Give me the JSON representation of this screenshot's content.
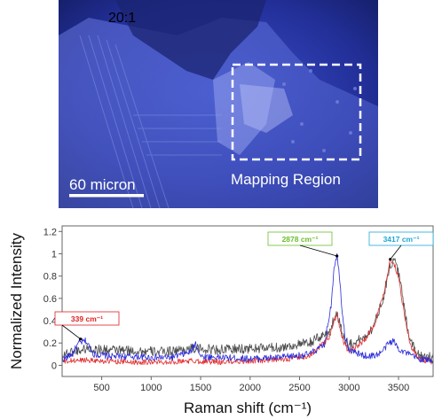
{
  "micrograph": {
    "magnification_label": "20:1",
    "scale_bar_label": "60 micron",
    "region_label": "Mapping Region"
  },
  "chart_data": {
    "type": "line",
    "xlabel": "Raman shift (cm⁻¹)",
    "ylabel": "Normalized Intensity",
    "xlim": [
      100,
      3850
    ],
    "ylim": [
      -0.1,
      1.25
    ],
    "xticks": [
      500,
      1000,
      1500,
      2000,
      2500,
      3000,
      3500
    ],
    "yticks": [
      0,
      0.2,
      0.4,
      0.6,
      0.8,
      1.0,
      1.2
    ],
    "ytick_labels": [
      "0",
      "0.2",
      "0.4",
      "0.6",
      "0.8",
      "1",
      "1.2"
    ],
    "grid": false,
    "series": [
      {
        "color": "#2a2ad8",
        "x": [
          100,
          200,
          270,
          339,
          420,
          600,
          800,
          1000,
          1200,
          1400,
          1450,
          1500,
          1700,
          2000,
          2300,
          2600,
          2750,
          2820,
          2850,
          2878,
          2900,
          2930,
          2960,
          3000,
          3100,
          3200,
          3300,
          3350,
          3400,
          3450,
          3500,
          3600,
          3700,
          3850
        ],
        "y": [
          0.05,
          0.1,
          0.2,
          0.22,
          0.1,
          0.08,
          0.08,
          0.07,
          0.07,
          0.12,
          0.2,
          0.08,
          0.07,
          0.06,
          0.07,
          0.1,
          0.18,
          0.55,
          0.9,
          0.98,
          0.85,
          0.5,
          0.25,
          0.14,
          0.1,
          0.08,
          0.1,
          0.14,
          0.2,
          0.22,
          0.15,
          0.1,
          0.06,
          0.04
        ]
      },
      {
        "color": "#4a4a4a",
        "x": [
          100,
          200,
          339,
          500,
          800,
          1100,
          1400,
          1700,
          2000,
          2300,
          2600,
          2800,
          2850,
          2878,
          2900,
          2950,
          3000,
          3050,
          3150,
          3250,
          3350,
          3400,
          3450,
          3500,
          3560,
          3620,
          3700,
          3850
        ],
        "y": [
          0.1,
          0.12,
          0.15,
          0.14,
          0.13,
          0.12,
          0.15,
          0.14,
          0.15,
          0.16,
          0.2,
          0.3,
          0.42,
          0.47,
          0.4,
          0.25,
          0.18,
          0.2,
          0.25,
          0.35,
          0.62,
          0.85,
          0.95,
          0.85,
          0.5,
          0.22,
          0.1,
          0.07
        ]
      },
      {
        "color": "#e03030",
        "x": [
          100,
          200,
          339,
          500,
          800,
          1100,
          1400,
          1700,
          2000,
          2300,
          2600,
          2800,
          2850,
          2878,
          2900,
          2950,
          3000,
          3050,
          3150,
          3250,
          3350,
          3417,
          3450,
          3500,
          3560,
          3620,
          3700,
          3850
        ],
        "y": [
          0.03,
          0.04,
          0.05,
          0.04,
          0.03,
          0.03,
          0.04,
          0.03,
          0.04,
          0.05,
          0.08,
          0.25,
          0.4,
          0.45,
          0.36,
          0.2,
          0.12,
          0.15,
          0.22,
          0.35,
          0.65,
          0.95,
          0.92,
          0.8,
          0.45,
          0.18,
          0.06,
          0.03
        ]
      }
    ],
    "annotations": [
      {
        "label": "339 cm⁻¹",
        "x": 339,
        "y": 0.22,
        "color": "#e02020"
      },
      {
        "label": "2878 cm⁻¹",
        "x": 2878,
        "y": 0.98,
        "color": "#6abf2a"
      },
      {
        "label": "3417 cm⁻¹",
        "x": 3417,
        "y": 0.95,
        "color": "#1fa8d8"
      }
    ]
  }
}
